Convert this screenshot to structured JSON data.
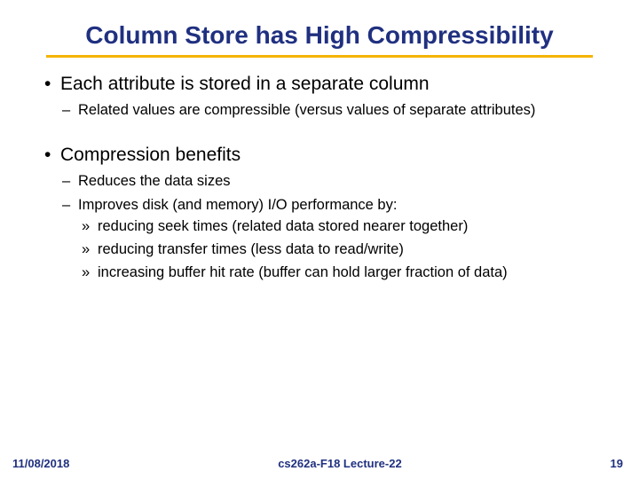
{
  "colors": {
    "title": "#203080",
    "underline": "#f5b400",
    "body_text": "#000000",
    "footer_text": "#203080",
    "background": "#ffffff"
  },
  "typography": {
    "title_fontsize": 28,
    "lvl1_fontsize": 21,
    "lvl2_fontsize": 16.5,
    "lvl3_fontsize": 16.5,
    "footer_fontsize": 13,
    "font_family": "Arial"
  },
  "title": "Column Store has High Compressibility",
  "bullets": {
    "b1": "Each attribute is stored in a separate column",
    "b1_1": "Related values are compressible (versus values of separate attributes)",
    "b2": "Compression benefits",
    "b2_1": "Reduces the data sizes",
    "b2_2": "Improves disk (and memory) I/O performance by:",
    "b2_2_1": "reducing seek times (related data stored nearer together)",
    "b2_2_2": "reducing transfer times (less data to read/write)",
    "b2_2_3": "increasing buffer hit rate (buffer can hold larger fraction of data)"
  },
  "footer": {
    "date": "11/08/2018",
    "center": "cs262a-F18 Lecture-22",
    "page": "19"
  }
}
